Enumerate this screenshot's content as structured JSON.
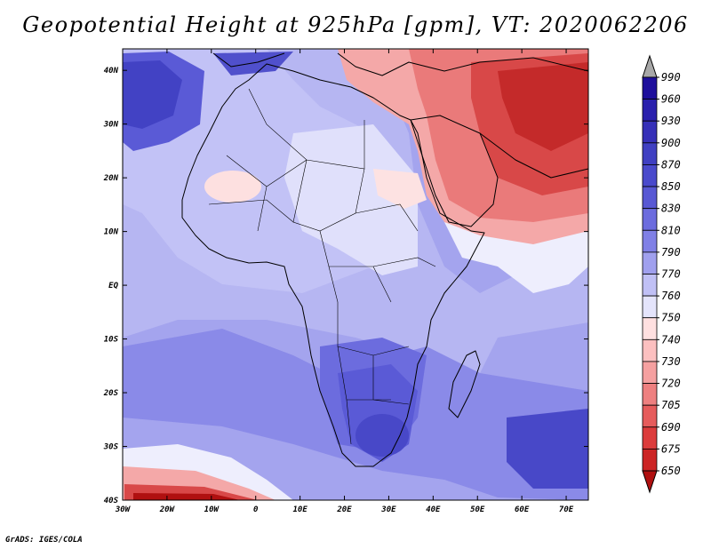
{
  "title": "Geopotential Height at 925hPa [gpm], VT: 2020062206",
  "credit": "GrADS: IGES/COLA",
  "map": {
    "lon_labels": [
      "30W",
      "20W",
      "10W",
      "0",
      "10E",
      "20E",
      "30E",
      "40E",
      "50E",
      "60E",
      "70E"
    ],
    "lat_labels": [
      "40N",
      "30N",
      "20N",
      "10N",
      "EQ",
      "10S",
      "20S",
      "30S",
      "40S"
    ],
    "lon_range": [
      -30,
      75
    ],
    "lat_range": [
      -40,
      44
    ]
  },
  "colorbar": {
    "levels": [
      "990",
      "960",
      "930",
      "900",
      "870",
      "850",
      "830",
      "810",
      "790",
      "770",
      "760",
      "750",
      "740",
      "730",
      "720",
      "705",
      "690",
      "675",
      "650"
    ],
    "colors": [
      "#1e0f9c",
      "#2a20ad",
      "#3630b8",
      "#4040c2",
      "#4a4acc",
      "#5858d4",
      "#6c6cde",
      "#8080e6",
      "#a0a0ee",
      "#c0c0f5",
      "#e4e4fb",
      "#ffe0e0",
      "#fcc0c0",
      "#f5a0a0",
      "#ee8080",
      "#e65c5c",
      "#dc3c3c",
      "#cc2424",
      "#b01010"
    ],
    "top_arrow_color": "#a8a8a8",
    "bottom_arrow_color": "#b01010"
  }
}
